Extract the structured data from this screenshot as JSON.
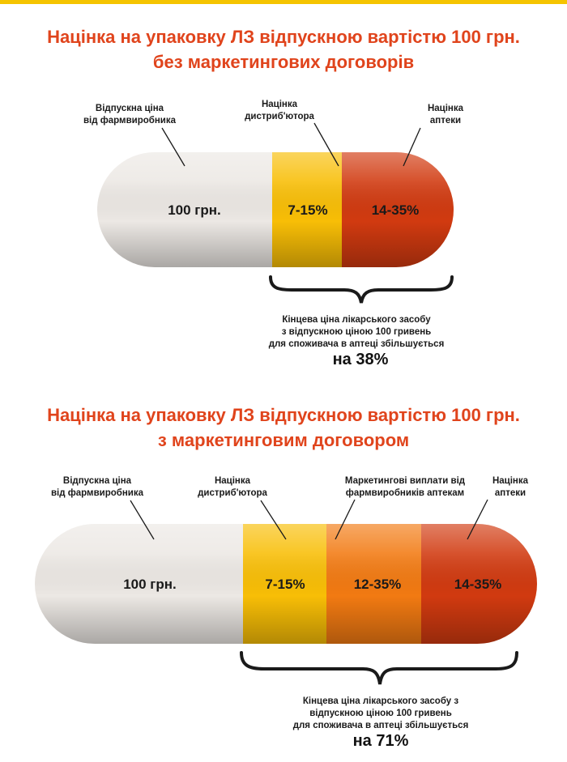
{
  "colors": {
    "title": "#e0441c",
    "white_segment": "#ece8e4",
    "yellow_segment": "#f8be06",
    "orange_segment": "#f27a12",
    "red_segment": "#d13a10",
    "accent_bar": "#f5c400"
  },
  "panel1": {
    "title_line1": "Націнка на упаковку ЛЗ відпускною вартістю 100 грн.",
    "title_line2": "без маркетингових договорів",
    "labels": {
      "manufacturer_line1": "Відпускна ціна",
      "manufacturer_line2": "від фармвиробника",
      "distributor_line1": "Націнка",
      "distributor_line2": "дистриб'ютора",
      "pharmacy_line1": "Націнка",
      "pharmacy_line2": "аптеки"
    },
    "segments": {
      "base": "100 грн.",
      "distributor": "7-15%",
      "pharmacy": "14-35%"
    },
    "caption_line1": "Кінцева ціна лікарського засобу",
    "caption_line2": "з відпускною ціною 100 гривень",
    "caption_line3": "для споживача в аптеці збільшується",
    "result": "на 38%"
  },
  "panel2": {
    "title_line1": "Націнка на упаковку ЛЗ відпускною вартістю 100 грн.",
    "title_line2": "з маркетинговим договором",
    "labels": {
      "manufacturer_line1": "Відпускна ціна",
      "manufacturer_line2": "від фармвиробника",
      "distributor_line1": "Націнка",
      "distributor_line2": "дистриб'ютора",
      "marketing_line1": "Маркетингові виплати від",
      "marketing_line2": "фармвиробників аптекам",
      "pharmacy_line1": "Націнка",
      "pharmacy_line2": "аптеки"
    },
    "segments": {
      "base": "100 грн.",
      "distributor": "7-15%",
      "marketing": "12-35%",
      "pharmacy": "14-35%"
    },
    "caption_line1": "Кінцева ціна лікарського засобу з",
    "caption_line2": "відпускною ціною 100 гривень",
    "caption_line3": "для споживача в аптеці збільшується",
    "result": "на 71%"
  }
}
